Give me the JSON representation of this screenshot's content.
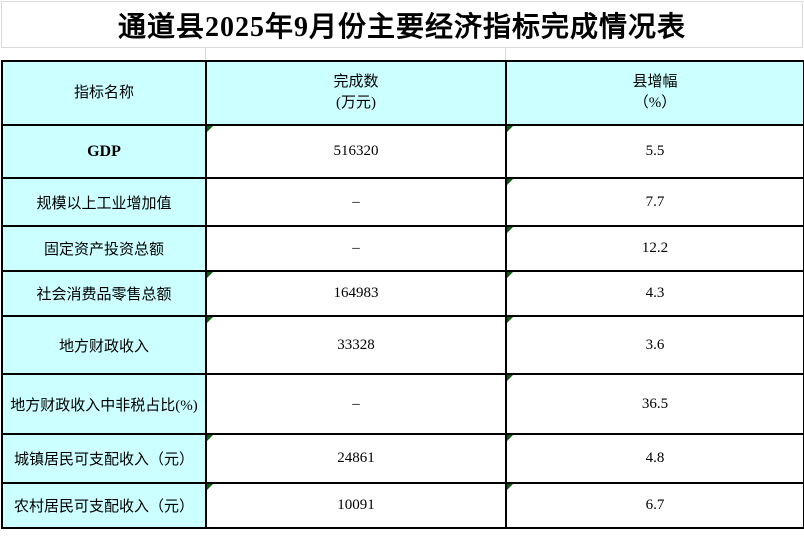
{
  "title": "通道县2025年9月份主要经济指标完成情况表",
  "table": {
    "columns": [
      {
        "label": "指标名称",
        "sublabel": ""
      },
      {
        "label": "完成数",
        "sublabel": "(万元)"
      },
      {
        "label": "县增幅",
        "sublabel": "（%）"
      }
    ],
    "rows": [
      {
        "label": "GDP",
        "completed": "516320",
        "growth": "5.5",
        "completed_indicator": true,
        "growth_indicator": true,
        "emphasis": true
      },
      {
        "label": "规模以上工业增加值",
        "completed": "–",
        "growth": "7.7",
        "completed_indicator": false,
        "growth_indicator": true,
        "emphasis": false
      },
      {
        "label": "固定资产投资总额",
        "completed": "–",
        "growth": "12.2",
        "completed_indicator": false,
        "growth_indicator": true,
        "emphasis": false
      },
      {
        "label": "社会消费品零售总额",
        "completed": "164983",
        "growth": "4.3",
        "completed_indicator": true,
        "growth_indicator": true,
        "emphasis": false
      },
      {
        "label": "地方财政收入",
        "completed": "33328",
        "growth": "3.6",
        "completed_indicator": true,
        "growth_indicator": true,
        "emphasis": false
      },
      {
        "label": "地方财政收入中非税占比(%)",
        "completed": "–",
        "growth": "36.5",
        "completed_indicator": false,
        "growth_indicator": true,
        "emphasis": false
      },
      {
        "label": "城镇居民可支配收入（元）",
        "completed": "24861",
        "growth": "4.8",
        "completed_indicator": true,
        "growth_indicator": true,
        "emphasis": false
      },
      {
        "label": "农村居民可支配收入（元）",
        "completed": "10091",
        "growth": "6.7",
        "completed_indicator": true,
        "growth_indicator": true,
        "emphasis": false
      }
    ]
  },
  "colors": {
    "header_bg": "#CCFFFF",
    "cell_bg": "#FFFFFF",
    "border": "#000000",
    "gridline": "#D9D9D9",
    "error_indicator_green": "#0B5E0B"
  }
}
